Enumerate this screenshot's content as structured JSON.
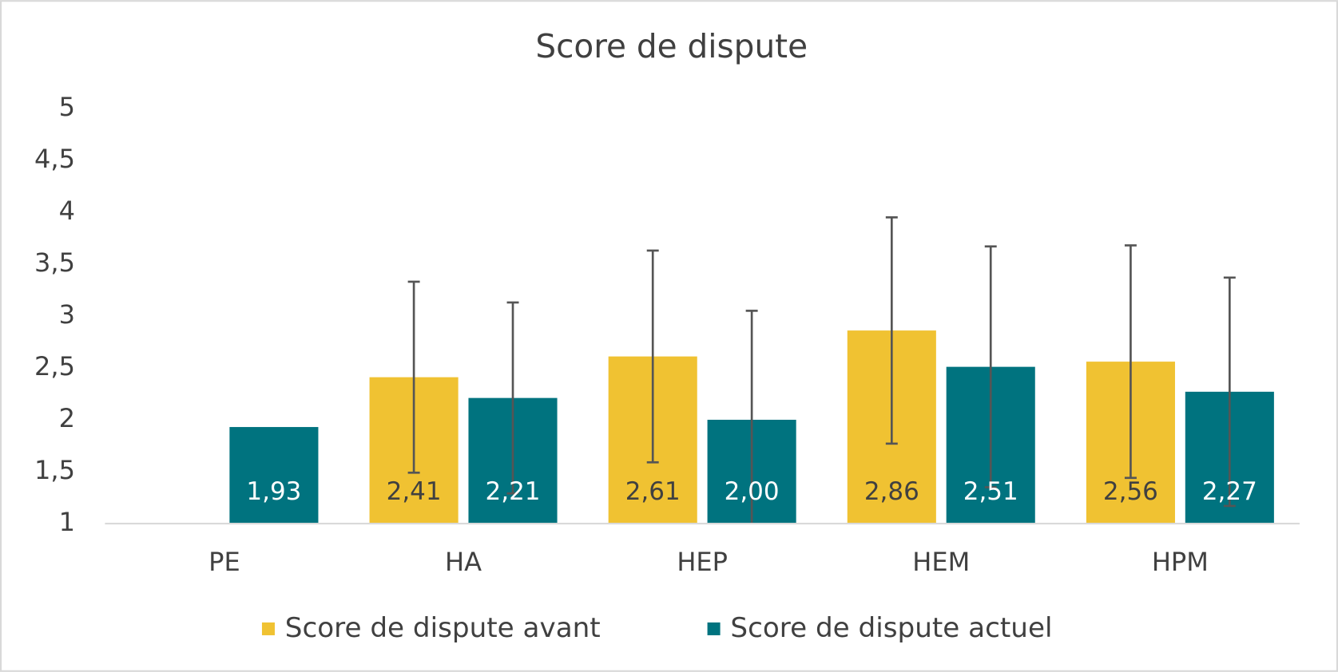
{
  "chart_data": {
    "type": "bar",
    "title": "Score de dispute",
    "categories": [
      "PE",
      "HA",
      "HEP",
      "HEM",
      "HPM"
    ],
    "series": [
      {
        "name": "Score de dispute avant",
        "color": "#f0c232",
        "values": [
          null,
          2.41,
          2.61,
          2.86,
          2.56
        ],
        "value_labels": [
          null,
          "2,41",
          "2,61",
          "2,86",
          "2,56"
        ],
        "errors": [
          null,
          0.92,
          1.02,
          1.09,
          1.12
        ]
      },
      {
        "name": "Score de dispute actuel",
        "color": "#00737f",
        "values": [
          1.93,
          2.21,
          2.0,
          2.51,
          2.27
        ],
        "value_labels": [
          "1,93",
          "2,21",
          "2,00",
          "2,51",
          "2,27"
        ],
        "errors": [
          null,
          0.92,
          1.05,
          1.16,
          1.1
        ]
      }
    ],
    "ylim": [
      1,
      5
    ],
    "yticks": [
      1,
      {
        "value": 1.5,
        "label": "1,5"
      },
      2,
      {
        "value": 2.5,
        "label": "2,5"
      },
      3,
      {
        "value": 3.5,
        "label": "3,5"
      },
      4,
      {
        "value": 4.5,
        "label": "4,5"
      },
      5
    ],
    "grid": false,
    "legend": "bottom"
  }
}
